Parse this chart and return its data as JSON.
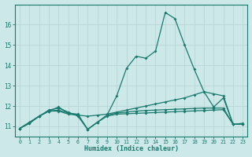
{
  "background_color": "#cce8e8",
  "grid_color": "#b8d4d4",
  "line_color": "#1a7a6e",
  "xlabel": "Humidex (Indice chaleur)",
  "xlim": [
    -0.5,
    23.5
  ],
  "ylim": [
    10.5,
    17.0
  ],
  "xticks": [
    0,
    1,
    2,
    3,
    4,
    5,
    6,
    7,
    8,
    9,
    10,
    11,
    12,
    13,
    14,
    15,
    16,
    17,
    18,
    19,
    20,
    21,
    22,
    23
  ],
  "yticks": [
    11,
    12,
    13,
    14,
    15,
    16
  ],
  "series": [
    {
      "x": [
        0,
        1,
        2,
        3,
        4,
        5,
        6,
        7,
        8,
        9,
        10,
        11,
        12,
        13,
        14,
        15,
        16,
        17,
        18,
        19,
        20,
        21,
        22,
        23
      ],
      "y": [
        10.9,
        11.2,
        11.5,
        11.8,
        11.9,
        11.7,
        11.5,
        10.85,
        11.2,
        11.55,
        12.5,
        13.85,
        14.45,
        14.35,
        14.7,
        16.6,
        16.3,
        15.0,
        13.8,
        12.7,
        11.95,
        12.4,
        11.1,
        11.15
      ]
    },
    {
      "x": [
        0,
        1,
        2,
        3,
        4,
        5,
        6,
        7,
        8,
        9,
        10,
        11,
        12,
        13,
        14,
        15,
        16,
        17,
        18,
        19,
        20,
        21,
        22,
        23
      ],
      "y": [
        10.9,
        11.15,
        11.5,
        11.75,
        11.8,
        11.65,
        11.55,
        11.5,
        11.55,
        11.6,
        11.7,
        11.8,
        11.9,
        12.0,
        12.1,
        12.2,
        12.3,
        12.4,
        12.55,
        12.7,
        12.6,
        12.5,
        11.1,
        11.1
      ]
    },
    {
      "x": [
        0,
        1,
        2,
        3,
        4,
        5,
        6,
        7,
        8,
        9,
        10,
        11,
        12,
        13,
        14,
        15,
        16,
        17,
        18,
        19,
        20,
        21,
        22,
        23
      ],
      "y": [
        10.9,
        11.2,
        11.5,
        11.75,
        11.95,
        11.65,
        11.6,
        10.85,
        11.2,
        11.55,
        11.65,
        11.7,
        11.75,
        11.78,
        11.8,
        11.82,
        11.84,
        11.86,
        11.88,
        11.9,
        11.9,
        11.9,
        11.1,
        11.1
      ]
    },
    {
      "x": [
        0,
        1,
        2,
        3,
        4,
        5,
        6,
        7,
        8,
        9,
        10,
        11,
        12,
        13,
        14,
        15,
        16,
        17,
        18,
        19,
        20,
        21,
        22,
        23
      ],
      "y": [
        10.9,
        11.15,
        11.5,
        11.75,
        11.75,
        11.6,
        11.55,
        10.85,
        11.2,
        11.5,
        11.6,
        11.62,
        11.64,
        11.66,
        11.68,
        11.7,
        11.72,
        11.74,
        11.76,
        11.78,
        11.8,
        11.82,
        11.1,
        11.1
      ]
    }
  ]
}
